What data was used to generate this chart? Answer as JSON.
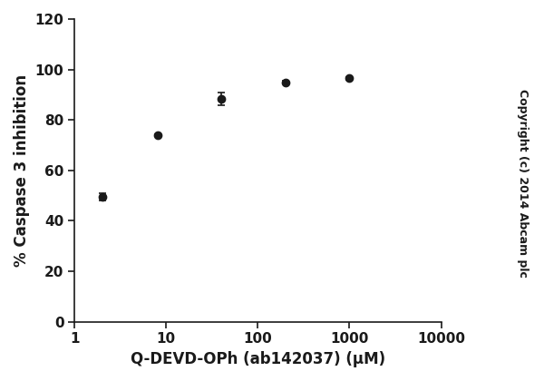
{
  "x": [
    2,
    8,
    40,
    200,
    1000
  ],
  "y": [
    49.5,
    74.0,
    88.5,
    95.0,
    96.5
  ],
  "yerr": [
    1.5,
    0.5,
    2.5,
    0.5,
    0.5
  ],
  "xlabel": "Q-DEVD-OPh (ab142037) (μM)",
  "ylabel": "% Caspase 3 inhibition",
  "ylim": [
    0,
    120
  ],
  "yticks": [
    0,
    20,
    40,
    60,
    80,
    100,
    120
  ],
  "xlim_log": [
    1,
    10000
  ],
  "xticks": [
    1,
    10,
    100,
    1000,
    10000
  ],
  "xtick_labels": [
    "1",
    "10",
    "100",
    "1000",
    "10000"
  ],
  "line_color": "#1a1a1a",
  "marker": "o",
  "markersize": 6,
  "linewidth": 1.8,
  "copyright_text": "Copyright (c) 2014 Abcam plc",
  "bg_color": "#ffffff",
  "axis_color": "#1a1a1a",
  "label_fontsize": 12,
  "tick_fontsize": 11,
  "copyright_fontsize": 9
}
